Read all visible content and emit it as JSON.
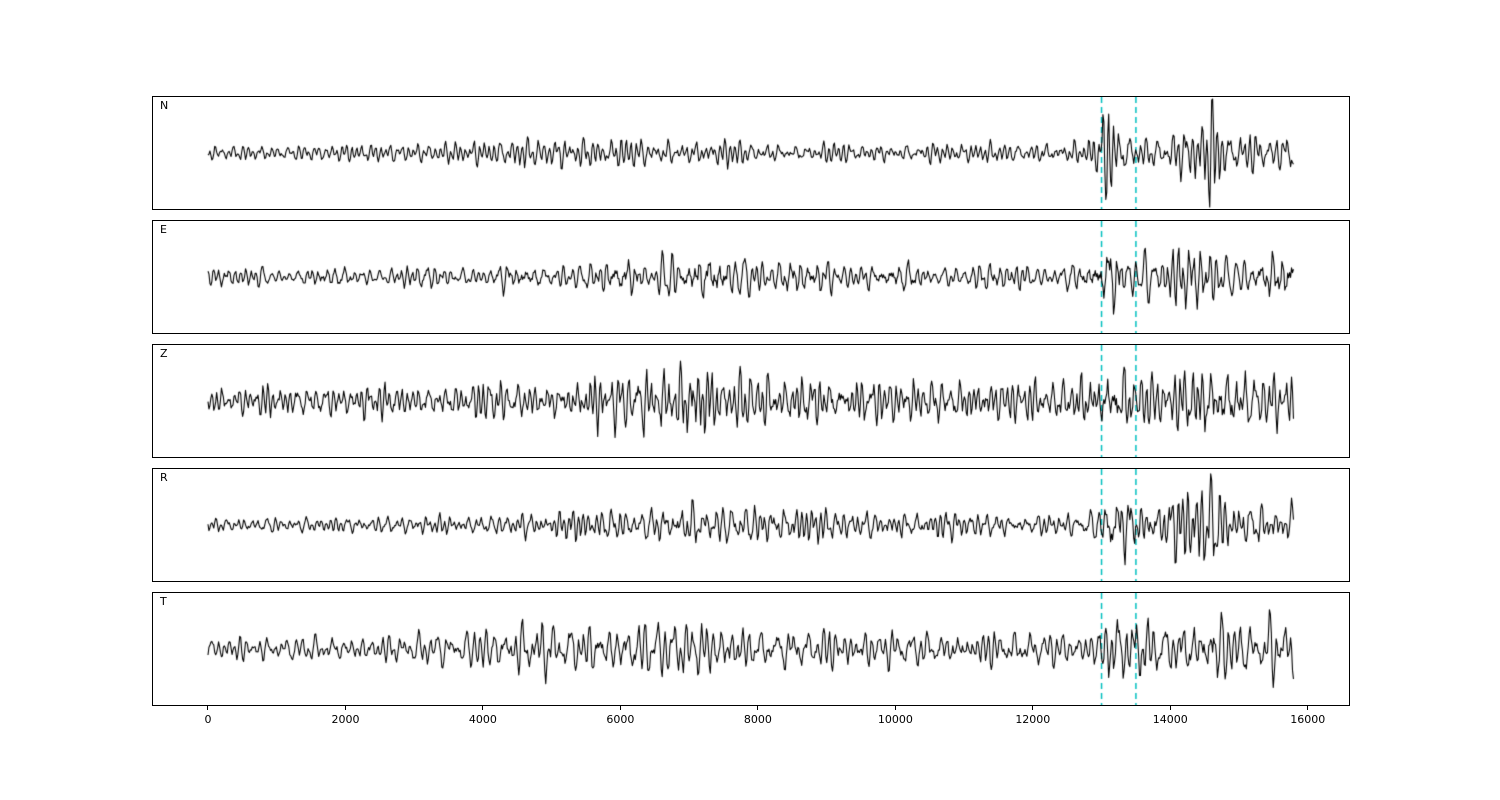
{
  "chart_data": {
    "type": "line",
    "title": "",
    "xlabel": "",
    "ylabel": "",
    "description": "Five stacked seismogram traces (components N, E, Z, R, T) of black waveform noise with an amplitude burst between two dashed cyan vertical marker lines near x=13000-13500 and large spikes near x=14600",
    "xlim": [
      -800,
      16600
    ],
    "x_ticks": [
      0,
      2000,
      4000,
      6000,
      8000,
      10000,
      12000,
      14000,
      16000
    ],
    "x_data_range": [
      0,
      15800
    ],
    "grid": false,
    "legend": "none",
    "trace_color": "#000000",
    "background_color": "#ffffff",
    "marker_lines": {
      "x": [
        13000,
        13500
      ],
      "color": "#00bfbf",
      "style": "dashed"
    },
    "panels": [
      {
        "label": "N",
        "seed": 3,
        "envelope": [
          [
            0,
            0.15
          ],
          [
            2000,
            0.17
          ],
          [
            4000,
            0.22
          ],
          [
            4600,
            0.3
          ],
          [
            5600,
            0.28
          ],
          [
            7000,
            0.24
          ],
          [
            9000,
            0.18
          ],
          [
            11000,
            0.2
          ],
          [
            12700,
            0.22
          ],
          [
            12950,
            0.4
          ],
          [
            13080,
            1.0
          ],
          [
            13250,
            0.55
          ],
          [
            13500,
            0.38
          ],
          [
            13800,
            0.35
          ],
          [
            14100,
            0.5
          ],
          [
            14450,
            0.6
          ],
          [
            14600,
            1.05
          ],
          [
            14750,
            0.6
          ],
          [
            15000,
            0.4
          ],
          [
            15400,
            0.35
          ],
          [
            15800,
            0.5
          ]
        ]
      },
      {
        "label": "E",
        "seed": 7,
        "envelope": [
          [
            0,
            0.18
          ],
          [
            2500,
            0.2
          ],
          [
            4000,
            0.24
          ],
          [
            5500,
            0.28
          ],
          [
            6500,
            0.42
          ],
          [
            7200,
            0.5
          ],
          [
            8000,
            0.45
          ],
          [
            9000,
            0.3
          ],
          [
            10500,
            0.28
          ],
          [
            12000,
            0.25
          ],
          [
            12800,
            0.3
          ],
          [
            13050,
            0.55
          ],
          [
            13180,
            0.95
          ],
          [
            13400,
            0.6
          ],
          [
            13700,
            0.5
          ],
          [
            14000,
            0.55
          ],
          [
            14300,
            0.65
          ],
          [
            14600,
            0.5
          ],
          [
            15000,
            0.55
          ],
          [
            15400,
            0.45
          ],
          [
            15800,
            0.55
          ]
        ]
      },
      {
        "label": "Z",
        "seed": 12,
        "envelope": [
          [
            0,
            0.3
          ],
          [
            2000,
            0.32
          ],
          [
            3500,
            0.35
          ],
          [
            5000,
            0.4
          ],
          [
            6200,
            0.55
          ],
          [
            6700,
            0.85
          ],
          [
            7300,
            0.75
          ],
          [
            7800,
            0.55
          ],
          [
            8500,
            0.5
          ],
          [
            9500,
            0.45
          ],
          [
            10500,
            0.42
          ],
          [
            11500,
            0.45
          ],
          [
            12500,
            0.4
          ],
          [
            13000,
            0.6
          ],
          [
            13200,
            0.8
          ],
          [
            13500,
            0.6
          ],
          [
            14000,
            0.5
          ],
          [
            14400,
            0.7
          ],
          [
            14800,
            0.85
          ],
          [
            15200,
            0.6
          ],
          [
            15800,
            0.5
          ]
        ]
      },
      {
        "label": "R",
        "seed": 21,
        "envelope": [
          [
            0,
            0.15
          ],
          [
            2000,
            0.17
          ],
          [
            3500,
            0.2
          ],
          [
            5000,
            0.25
          ],
          [
            6300,
            0.35
          ],
          [
            6800,
            0.5
          ],
          [
            7500,
            0.45
          ],
          [
            8200,
            0.4
          ],
          [
            9000,
            0.3
          ],
          [
            10000,
            0.28
          ],
          [
            11500,
            0.25
          ],
          [
            12600,
            0.22
          ],
          [
            13000,
            0.45
          ],
          [
            13150,
            1.0
          ],
          [
            13350,
            0.7
          ],
          [
            13600,
            0.45
          ],
          [
            14000,
            0.55
          ],
          [
            14400,
            0.65
          ],
          [
            14600,
            1.0
          ],
          [
            14800,
            0.6
          ],
          [
            15200,
            0.5
          ],
          [
            15800,
            0.45
          ]
        ]
      },
      {
        "label": "T",
        "seed": 42,
        "envelope": [
          [
            0,
            0.22
          ],
          [
            1500,
            0.25
          ],
          [
            3000,
            0.28
          ],
          [
            4200,
            0.45
          ],
          [
            5000,
            0.5
          ],
          [
            6000,
            0.55
          ],
          [
            6800,
            0.5
          ],
          [
            7500,
            0.55
          ],
          [
            8200,
            0.45
          ],
          [
            9000,
            0.4
          ],
          [
            10000,
            0.38
          ],
          [
            11000,
            0.4
          ],
          [
            12000,
            0.35
          ],
          [
            12800,
            0.35
          ],
          [
            13050,
            0.6
          ],
          [
            13180,
            0.95
          ],
          [
            13400,
            0.65
          ],
          [
            13700,
            0.5
          ],
          [
            14100,
            0.55
          ],
          [
            14500,
            0.7
          ],
          [
            14650,
            1.05
          ],
          [
            14850,
            0.6
          ],
          [
            15200,
            0.5
          ],
          [
            15600,
            0.6
          ],
          [
            15800,
            0.45
          ]
        ]
      }
    ]
  }
}
